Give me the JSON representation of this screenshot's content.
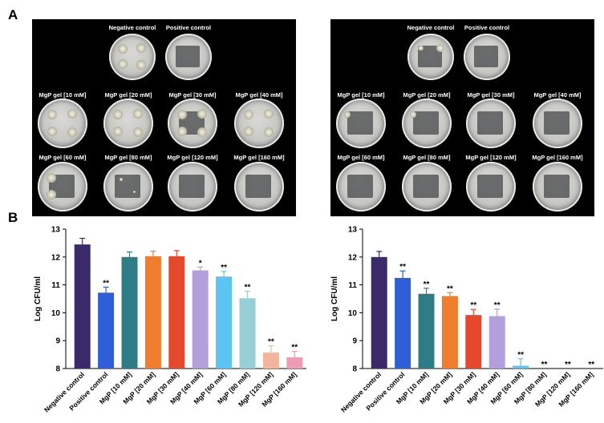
{
  "panel_a_label": "A",
  "panel_b_label": "B",
  "photos": [
    {
      "top_labels": [
        "Negative control",
        "Positive control"
      ],
      "row2_labels": [
        "MgP gel [10 mM]",
        "MgP gel [20 mM]",
        "MgP gel [30 mM]",
        "MgP gel [40 mM]"
      ],
      "row3_labels": [
        "MgP gel [60 mM]",
        "MgP gel [80 mM]",
        "MgP gel [120 mM]",
        "MgP gel [160 mM]"
      ]
    },
    {
      "top_labels": [
        "Negative control",
        "Positive control"
      ],
      "row2_labels": [
        "MgP gel [10 mM]",
        "MgP gel [20 mM]",
        "MgP gel [30 mM]",
        "MgP gel [40 mM]"
      ],
      "row3_labels": [
        "MgP gel [60 mM]",
        "MgP gel [80 mM]",
        "MgP gel [120 mM]",
        "MgP gel [160 mM]"
      ]
    }
  ],
  "chart_data": [
    {
      "type": "bar",
      "ylabel": "Log CFU/ml",
      "ylim": [
        8,
        13
      ],
      "yticks": [
        8,
        9,
        10,
        11,
        12,
        13
      ],
      "categories": [
        "Negative control",
        "Positive control",
        "MgP [10 mM]",
        "MgP [20 mM]",
        "MgP [30 mM]",
        "MgP [40 mM]",
        "MgP [60 mM]",
        "MgP [80 mM]",
        "MgP [120 mM]",
        "MgP [160 mM]"
      ],
      "values": [
        12.45,
        10.72,
        12.0,
        12.03,
        12.03,
        11.52,
        11.3,
        10.52,
        8.57,
        8.4
      ],
      "errors": [
        0.22,
        0.2,
        0.18,
        0.18,
        0.2,
        0.12,
        0.18,
        0.25,
        0.25,
        0.22
      ],
      "significance": [
        "",
        "**",
        "",
        "",
        "",
        "*",
        "**",
        "**",
        "**",
        "**"
      ],
      "colors": [
        "#3b2a6b",
        "#2e5fd9",
        "#2e7d86",
        "#ef7d2e",
        "#e5482b",
        "#b39fdc",
        "#5bc4f2",
        "#94d0d6",
        "#f2b49a",
        "#ee9bb5"
      ]
    },
    {
      "type": "bar",
      "ylabel": "Log CFU/ml",
      "ylim": [
        8,
        13
      ],
      "yticks": [
        8,
        9,
        10,
        11,
        12,
        13
      ],
      "categories": [
        "Negative control",
        "Positive control",
        "MgP [10 mM]",
        "MgP [20 mM]",
        "MgP [30 mM]",
        "MgP [40 mM]",
        "MgP [60 mM]",
        "MgP [80 mM]",
        "MgP [120 mM]",
        "MgP [160 mM]"
      ],
      "values": [
        12.0,
        11.25,
        10.68,
        10.6,
        9.92,
        9.88,
        8.1,
        8.0,
        8.0,
        8.0
      ],
      "errors": [
        0.2,
        0.25,
        0.2,
        0.12,
        0.2,
        0.25,
        0.25,
        0,
        0,
        0
      ],
      "significance": [
        "",
        "**",
        "**",
        "**",
        "**",
        "**",
        "**",
        "**",
        "**",
        "**"
      ],
      "colors": [
        "#3b2a6b",
        "#2e5fd9",
        "#2e7d86",
        "#ef7d2e",
        "#e5482b",
        "#b39fdc",
        "#5bc4f2",
        "#94d0d6",
        "#f2b49a",
        "#ee9bb5"
      ]
    }
  ]
}
